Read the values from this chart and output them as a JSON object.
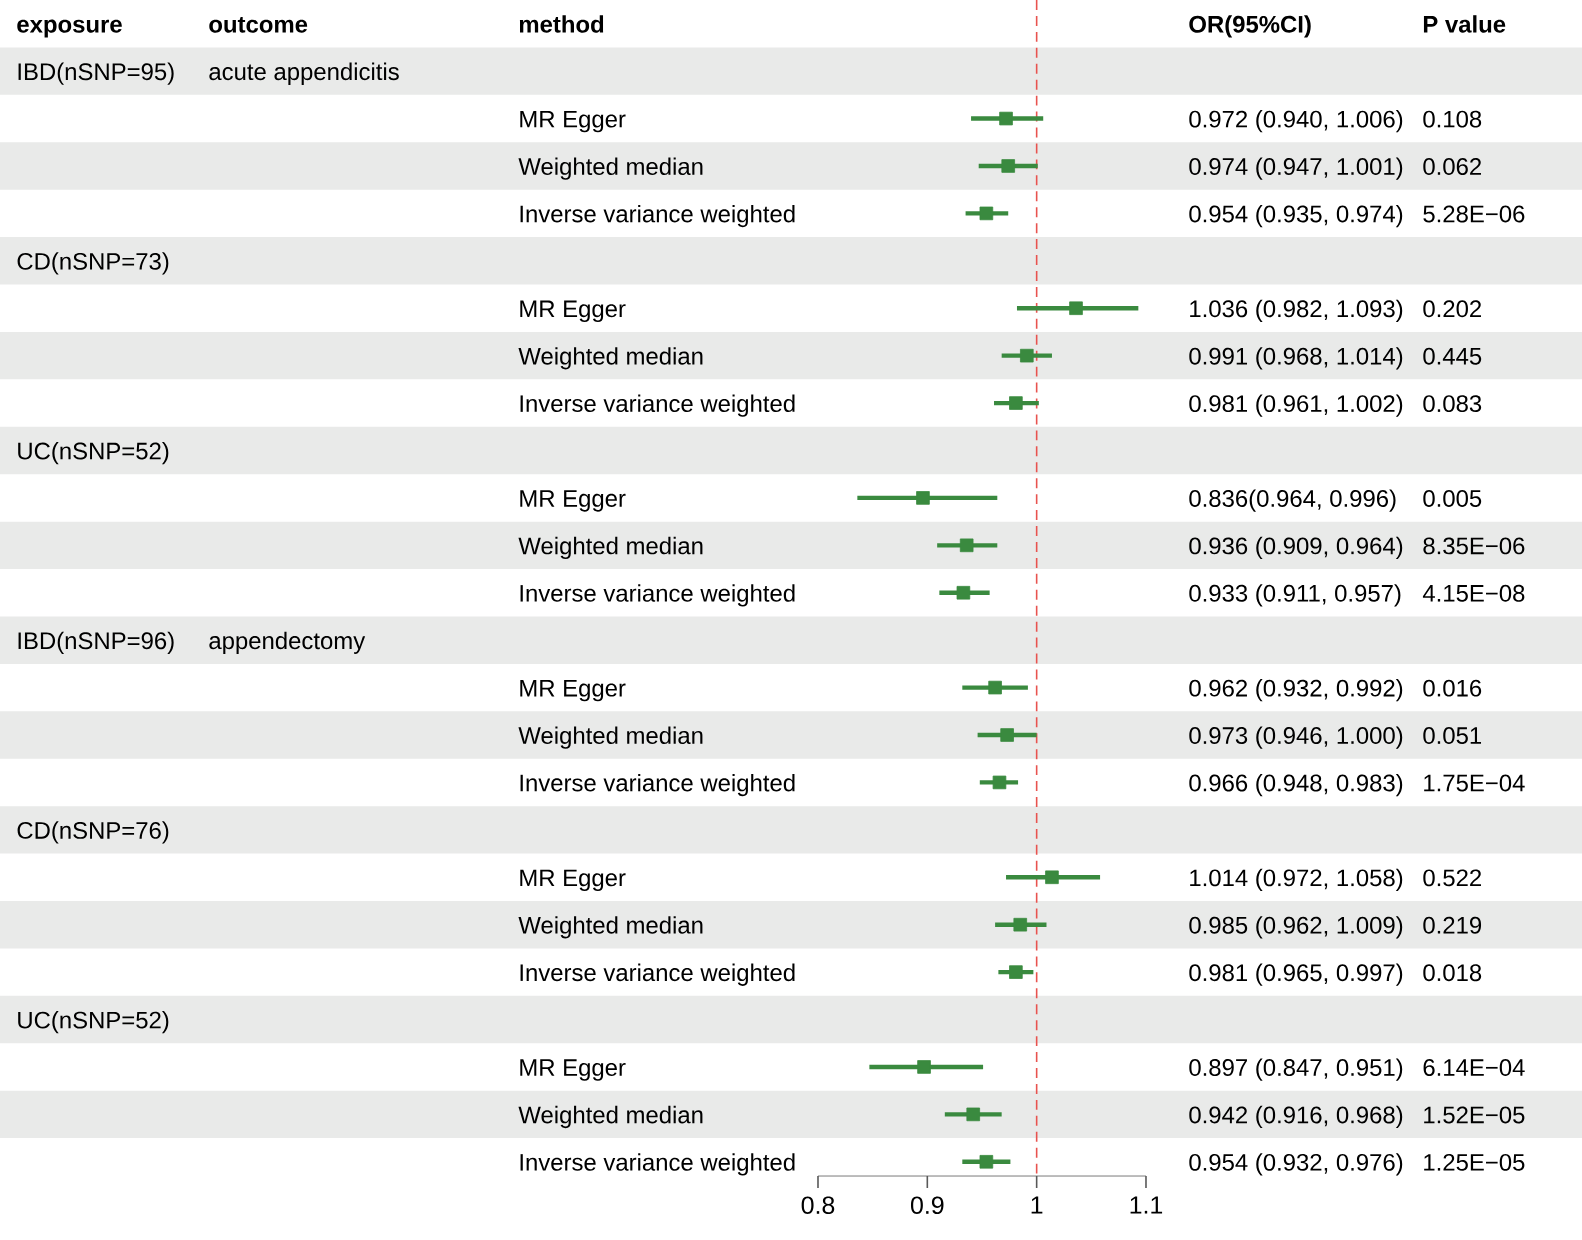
{
  "chart_data": {
    "type": "scatter",
    "orientation": "horizontal",
    "marker": "square",
    "color": "#3a8a3f",
    "categories": [
      null,
      "MR Egger",
      "Weighted median",
      "Inverse variance weighted",
      null,
      "MR Egger",
      "Weighted median",
      "Inverse variance weighted",
      null,
      "MR Egger",
      "Weighted median",
      "Inverse variance weighted",
      null,
      "MR Egger",
      "Weighted median",
      "Inverse variance weighted",
      null,
      "MR Egger",
      "Weighted median",
      "Inverse variance weighted",
      null,
      "MR Egger",
      "Weighted median",
      "Inverse variance weighted"
    ],
    "values": [
      null,
      0.972,
      0.974,
      0.954,
      null,
      1.036,
      0.991,
      0.981,
      null,
      0.896,
      0.936,
      0.933,
      null,
      0.962,
      0.973,
      0.966,
      null,
      1.014,
      0.985,
      0.981,
      null,
      0.897,
      0.942,
      0.954
    ],
    "errors": [
      null,
      [
        0.94,
        1.006
      ],
      [
        0.947,
        1.001
      ],
      [
        0.935,
        0.974
      ],
      null,
      [
        0.982,
        1.093
      ],
      [
        0.968,
        1.014
      ],
      [
        0.961,
        1.002
      ],
      null,
      [
        0.836,
        0.964
      ],
      [
        0.909,
        0.964
      ],
      [
        0.911,
        0.957
      ],
      null,
      [
        0.932,
        0.992
      ],
      [
        0.946,
        1.0
      ],
      [
        0.948,
        0.983
      ],
      null,
      [
        0.972,
        1.058
      ],
      [
        0.962,
        1.009
      ],
      [
        0.965,
        0.997
      ],
      null,
      [
        0.847,
        0.951
      ],
      [
        0.916,
        0.968
      ],
      [
        0.932,
        0.976
      ]
    ],
    "value_labels": [
      null,
      "0.972 (0.940, 1.006)",
      "0.974 (0.947, 1.001)",
      "0.954 (0.935, 0.974)",
      null,
      "1.036 (0.982, 1.093)",
      "0.991 (0.968, 1.014)",
      "0.981 (0.961, 1.002)",
      null,
      "0.836(0.964, 0.996)",
      "0.936 (0.909, 0.964)",
      "0.933 (0.911, 0.957)",
      null,
      "0.962 (0.932, 0.992)",
      "0.973 (0.946, 1.000)",
      "0.966 (0.948, 0.983)",
      null,
      "1.014 (0.972, 1.058)",
      "0.985 (0.962, 1.009)",
      "0.981 (0.965, 0.997)",
      null,
      "0.897 (0.847, 0.951)",
      "0.942 (0.916, 0.968)",
      "0.954 (0.932, 0.976)"
    ],
    "xlim": [
      0.8,
      1.1
    ],
    "xticks": [
      0.8,
      0.9,
      1,
      1.1
    ],
    "ref_lines": [
      {
        "axis": "x",
        "value": 1,
        "color": "#e8534f",
        "line_style": "dashed"
      }
    ],
    "annotations": [
      "exposure",
      "outcome",
      "method",
      "OR(95%CI)",
      "P value",
      "IBD(nSNP=95)",
      "CD(nSNP=73)",
      "UC(nSNP=52)",
      "IBD(nSNP=96)",
      "CD(nSNP=76)",
      "UC(nSNP=52)",
      "acute appendicitis",
      "appendectomy",
      "0.108",
      "0.062",
      "5.28E−06",
      "0.202",
      "0.445",
      "0.083",
      "0.005",
      "8.35E−06",
      "4.15E−08",
      "0.016",
      "0.051",
      "1.75E−04",
      "0.522",
      "0.219",
      "0.018",
      "6.14E−04",
      "1.52E−05",
      "1.25E−05"
    ]
  }
}
